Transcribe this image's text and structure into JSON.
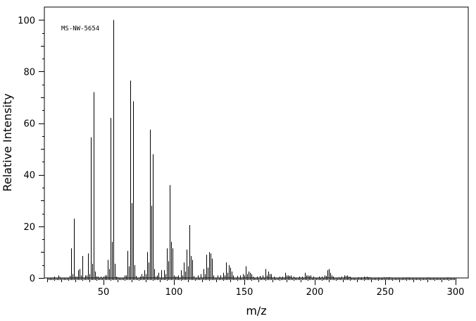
{
  "chart_data": {
    "type": "bar",
    "title": "",
    "annotation": "MS-NW-5654",
    "xlabel": "m/z",
    "ylabel": "Relative Intensity",
    "xlim": [
      8,
      309
    ],
    "ylim": [
      0,
      105
    ],
    "x_ticks": [
      50,
      100,
      150,
      200,
      250,
      300
    ],
    "y_ticks": [
      0,
      20,
      40,
      60,
      80,
      100
    ],
    "grid": false,
    "series": [
      {
        "peaks": [
          [
            15,
            0.5
          ],
          [
            18,
            1
          ],
          [
            19,
            0.3
          ],
          [
            26,
            0.8
          ],
          [
            27,
            11.5
          ],
          [
            28,
            1.5
          ],
          [
            29,
            23
          ],
          [
            30,
            0.6
          ],
          [
            31,
            0.5
          ],
          [
            32,
            3
          ],
          [
            33,
            3.5
          ],
          [
            34,
            1
          ],
          [
            35,
            8.5
          ],
          [
            37,
            1
          ],
          [
            38,
            1
          ],
          [
            39,
            9.5
          ],
          [
            40,
            1.5
          ],
          [
            41,
            54.5
          ],
          [
            42,
            5.5
          ],
          [
            43,
            72
          ],
          [
            44,
            2.5
          ],
          [
            45,
            0.6
          ],
          [
            46,
            0.5
          ],
          [
            48,
            0.5
          ],
          [
            50,
            0.5
          ],
          [
            51,
            1
          ],
          [
            52,
            1
          ],
          [
            53,
            7
          ],
          [
            54,
            3.5
          ],
          [
            55,
            62
          ],
          [
            56,
            14
          ],
          [
            57,
            100
          ],
          [
            58,
            5.5
          ],
          [
            59,
            0.5
          ],
          [
            60,
            0.3
          ],
          [
            65,
            1
          ],
          [
            66,
            1
          ],
          [
            67,
            10.5
          ],
          [
            68,
            4.5
          ],
          [
            69,
            76.5
          ],
          [
            70,
            29
          ],
          [
            71,
            68.5
          ],
          [
            72,
            5
          ],
          [
            73,
            0.8
          ],
          [
            76,
            0.5
          ],
          [
            77,
            1.5
          ],
          [
            78,
            0.7
          ],
          [
            79,
            3
          ],
          [
            80,
            1.5
          ],
          [
            81,
            10
          ],
          [
            82,
            6
          ],
          [
            83,
            57.5
          ],
          [
            84,
            28
          ],
          [
            85,
            48
          ],
          [
            86,
            3.5
          ],
          [
            87,
            0.5
          ],
          [
            88,
            1
          ],
          [
            89,
            2
          ],
          [
            91,
            3
          ],
          [
            93,
            3
          ],
          [
            94,
            1.5
          ],
          [
            95,
            11.5
          ],
          [
            96,
            6.5
          ],
          [
            97,
            36
          ],
          [
            98,
            14
          ],
          [
            99,
            11.5
          ],
          [
            100,
            1
          ],
          [
            101,
            0.5
          ],
          [
            102,
            0.5
          ],
          [
            103,
            1
          ],
          [
            105,
            3
          ],
          [
            106,
            1
          ],
          [
            107,
            6
          ],
          [
            108,
            2.5
          ],
          [
            109,
            11
          ],
          [
            110,
            4.5
          ],
          [
            111,
            20.5
          ],
          [
            112,
            8.5
          ],
          [
            113,
            7
          ],
          [
            114,
            0.8
          ],
          [
            117,
            1
          ],
          [
            119,
            1.5
          ],
          [
            121,
            3.5
          ],
          [
            122,
            1.5
          ],
          [
            123,
            9
          ],
          [
            124,
            4
          ],
          [
            125,
            10
          ],
          [
            126,
            9.5
          ],
          [
            127,
            7.5
          ],
          [
            128,
            1
          ],
          [
            131,
            1
          ],
          [
            133,
            1
          ],
          [
            135,
            2
          ],
          [
            136,
            1
          ],
          [
            137,
            6
          ],
          [
            138,
            2
          ],
          [
            139,
            5
          ],
          [
            140,
            4
          ],
          [
            141,
            2.5
          ],
          [
            142,
            1
          ],
          [
            145,
            0.8
          ],
          [
            147,
            1
          ],
          [
            149,
            1.5
          ],
          [
            150,
            1
          ],
          [
            151,
            4.5
          ],
          [
            152,
            1.5
          ],
          [
            153,
            2.5
          ],
          [
            154,
            2
          ],
          [
            155,
            1.5
          ],
          [
            156,
            0.5
          ],
          [
            159,
            0.5
          ],
          [
            161,
            0.8
          ],
          [
            163,
            1
          ],
          [
            165,
            3.5
          ],
          [
            166,
            1
          ],
          [
            167,
            2.5
          ],
          [
            168,
            1.5
          ],
          [
            169,
            1.5
          ],
          [
            171,
            0.5
          ],
          [
            175,
            0.5
          ],
          [
            177,
            0.5
          ],
          [
            179,
            2
          ],
          [
            180,
            1
          ],
          [
            181,
            1
          ],
          [
            182,
            0.8
          ],
          [
            183,
            1
          ],
          [
            185,
            0.5
          ],
          [
            189,
            0.5
          ],
          [
            191,
            0.5
          ],
          [
            193,
            2
          ],
          [
            194,
            1
          ],
          [
            195,
            1
          ],
          [
            196,
            0.8
          ],
          [
            197,
            1
          ],
          [
            199,
            0.5
          ],
          [
            203,
            0.5
          ],
          [
            205,
            0.5
          ],
          [
            207,
            1
          ],
          [
            208,
            0.8
          ],
          [
            209,
            3
          ],
          [
            210,
            3.5
          ],
          [
            211,
            2
          ],
          [
            212,
            1
          ],
          [
            213,
            0.5
          ],
          [
            217,
            0.3
          ],
          [
            219,
            0.5
          ],
          [
            221,
            1
          ],
          [
            222,
            0.8
          ],
          [
            223,
            1
          ],
          [
            224,
            0.5
          ],
          [
            225,
            0.5
          ],
          [
            231,
            0.3
          ],
          [
            233,
            0.3
          ],
          [
            235,
            0.5
          ],
          [
            236,
            0.3
          ],
          [
            237,
            0.5
          ],
          [
            238,
            0.3
          ],
          [
            239,
            0.3
          ],
          [
            245,
            0.2
          ],
          [
            249,
            0.3
          ],
          [
            251,
            0.3
          ],
          [
            252,
            0.2
          ],
          [
            253,
            0.3
          ],
          [
            263,
            0.2
          ],
          [
            265,
            0.2
          ],
          [
            266,
            0.2
          ],
          [
            267,
            0.2
          ],
          [
            280,
            0.2
          ],
          [
            281,
            0.2
          ],
          [
            294,
            0.2
          ],
          [
            295,
            0.2
          ]
        ]
      }
    ]
  }
}
